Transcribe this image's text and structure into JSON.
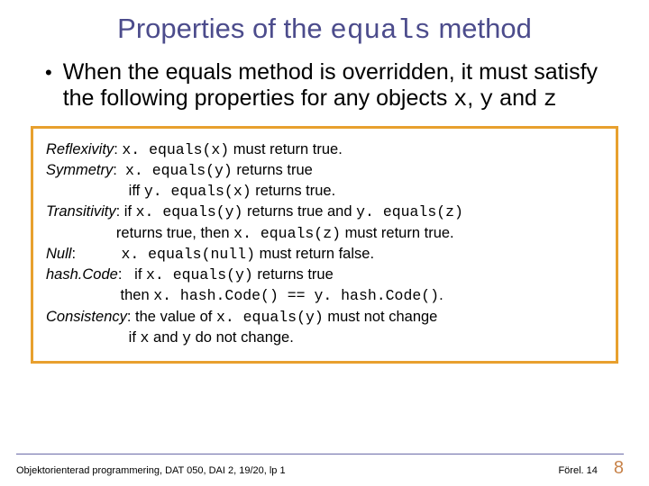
{
  "colors": {
    "title": "#4c4c8c",
    "box_border": "#e8a02e",
    "footer_rule": "#6a6aa8",
    "page_number": "#c8834a",
    "text": "#000000",
    "background": "#ffffff"
  },
  "title": {
    "pre": "Properties of the ",
    "mono": "equals",
    "post": " method"
  },
  "bullet": {
    "text1": "When the equals method is overridden, it must satisfy the following properties for any objects ",
    "x": "x",
    "sep1": ", ",
    "y": "y",
    "sep2": " and ",
    "z": "z"
  },
  "properties": [
    {
      "label": "Reflexivity",
      "colon": ": ",
      "segments": [
        {
          "t": "mono",
          "v": "x. equals(x)"
        },
        {
          "t": "plain",
          "v": " must return true."
        }
      ]
    },
    {
      "label": "Symmetry",
      "colon": ":  ",
      "segments": [
        {
          "t": "mono",
          "v": "x. equals(y)"
        },
        {
          "t": "plain",
          "v": " returns true"
        }
      ]
    },
    {
      "label": "",
      "colon": "",
      "segments": [
        {
          "t": "plain",
          "v": "                    iff "
        },
        {
          "t": "mono",
          "v": "y. equals(x)"
        },
        {
          "t": "plain",
          "v": " returns true."
        }
      ]
    },
    {
      "label": "Transitivity",
      "colon": ": ",
      "segments": [
        {
          "t": "plain",
          "v": "if "
        },
        {
          "t": "mono",
          "v": "x. equals(y)"
        },
        {
          "t": "plain",
          "v": " returns true and "
        },
        {
          "t": "mono",
          "v": "y. equals(z)"
        }
      ]
    },
    {
      "label": "",
      "colon": "",
      "segments": [
        {
          "t": "plain",
          "v": "                 returns true, then "
        },
        {
          "t": "mono",
          "v": "x. equals(z)"
        },
        {
          "t": "plain",
          "v": " must return true."
        }
      ]
    },
    {
      "label": "Null",
      "colon": ":           ",
      "segments": [
        {
          "t": "mono",
          "v": "x. equals(null)"
        },
        {
          "t": "plain",
          "v": " must return false."
        }
      ]
    },
    {
      "label": "hash.Code",
      "colon": ":   ",
      "segments": [
        {
          "t": "plain",
          "v": "if "
        },
        {
          "t": "mono",
          "v": "x. equals(y)"
        },
        {
          "t": "plain",
          "v": " returns true"
        }
      ]
    },
    {
      "label": "",
      "colon": "",
      "segments": [
        {
          "t": "plain",
          "v": "                  then "
        },
        {
          "t": "mono",
          "v": "x. hash.Code() == y. hash.Code()"
        },
        {
          "t": "plain",
          "v": "."
        }
      ]
    },
    {
      "label": "Consistency",
      "colon": ": ",
      "segments": [
        {
          "t": "plain",
          "v": "the value of "
        },
        {
          "t": "mono",
          "v": "x. equals(y)"
        },
        {
          "t": "plain",
          "v": " must not change"
        }
      ]
    },
    {
      "label": "",
      "colon": "",
      "segments": [
        {
          "t": "plain",
          "v": "                    if "
        },
        {
          "t": "mono",
          "v": "x"
        },
        {
          "t": "plain",
          "v": " and "
        },
        {
          "t": "mono",
          "v": "y"
        },
        {
          "t": "plain",
          "v": " do not change."
        }
      ]
    }
  ],
  "footer": {
    "left": "Objektorienterad programmering, DAT 050, DAI 2, 19/20, lp 1",
    "right": "Förel. 14",
    "page": "8"
  }
}
